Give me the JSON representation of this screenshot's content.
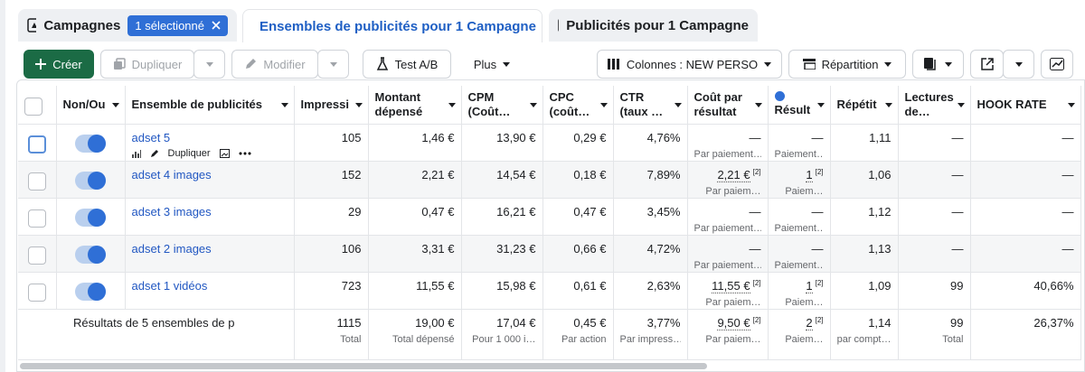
{
  "tabs": [
    {
      "label": "Campagnes",
      "badge": "1 sélectionné"
    },
    {
      "label": "Ensembles de publicités pour 1 Campagne"
    },
    {
      "label": "Publicités pour 1 Campagne"
    }
  ],
  "toolbar": {
    "create": "Créer",
    "duplicate": "Dupliquer",
    "edit": "Modifier",
    "ab_test": "Test A/B",
    "more": "Plus",
    "columns": "Colonnes : NEW PERSO",
    "breakdown": "Répartition"
  },
  "table": {
    "headers": [
      "Non/Ou",
      "Ensemble de publicités",
      "Impressi",
      "Montant dépensé",
      "CPM (Coût…",
      "CPC (coût…",
      "CTR (taux …",
      "Coût par résultat",
      "Résult",
      "Répétit",
      "Lectures de…",
      "HOOK RATE"
    ],
    "rows": [
      {
        "name": "adset 5",
        "action_label": "Dupliquer",
        "cells": [
          "105",
          "1,46 €",
          "13,90 €",
          "0,29 €",
          "4,76%",
          {
            "value": "—",
            "sub": "Par paiement…"
          },
          {
            "value": "—",
            "sub": "Paiement…"
          },
          "1,11",
          "—",
          "—"
        ]
      },
      {
        "name": "adset 4 images",
        "cells": [
          "152",
          "2,21 €",
          "14,54 €",
          "0,18 €",
          "7,89%",
          {
            "value": "2,21 €",
            "note": "[2]",
            "sub": "Par paiem…"
          },
          {
            "value": "1",
            "note": "[2]",
            "sub": "Paiem…"
          },
          "1,06",
          "—",
          "—"
        ]
      },
      {
        "name": "adset 3 images",
        "cells": [
          "29",
          "0,47 €",
          "16,21 €",
          "0,47 €",
          "3,45%",
          {
            "value": "—",
            "sub": "Par paiement…"
          },
          {
            "value": "—",
            "sub": "Paiement…"
          },
          "1,12",
          "—",
          "—"
        ]
      },
      {
        "name": "adset 2 images",
        "cells": [
          "106",
          "3,31 €",
          "31,23 €",
          "0,66 €",
          "4,72%",
          {
            "value": "—",
            "sub": "Par paiement…"
          },
          {
            "value": "—",
            "sub": "Paiement…"
          },
          "1,13",
          "—",
          "—"
        ]
      },
      {
        "name": "adset 1 vidéos",
        "cells": [
          "723",
          "11,55 €",
          "15,98 €",
          "0,61 €",
          "2,63%",
          {
            "value": "11,55 €",
            "note": "[2]",
            "sub": "Par paiem…"
          },
          {
            "value": "1",
            "note": "[2]",
            "sub": "Paiem…"
          },
          "1,09",
          "99",
          "40,66%"
        ]
      }
    ],
    "totals": {
      "label": "Résultats de 5 ensembles de p",
      "cells": [
        {
          "value": "1115",
          "sub": "Total"
        },
        {
          "value": "19,00 €",
          "sub": "Total dépensé"
        },
        {
          "value": "17,04 €",
          "sub": "Pour 1 000 i…"
        },
        {
          "value": "0,45 €",
          "sub": "Par action"
        },
        {
          "value": "3,77%",
          "sub": "Par impress…"
        },
        {
          "value": "9,50 €",
          "note": "[2]",
          "sub": "Par paiem…"
        },
        {
          "value": "2",
          "note": "[2]",
          "sub": "Paiem…"
        },
        {
          "value": "1,14",
          "sub": "par compt…"
        },
        {
          "value": "99",
          "sub": "Total"
        },
        {
          "value": "26,37%"
        }
      ]
    }
  }
}
